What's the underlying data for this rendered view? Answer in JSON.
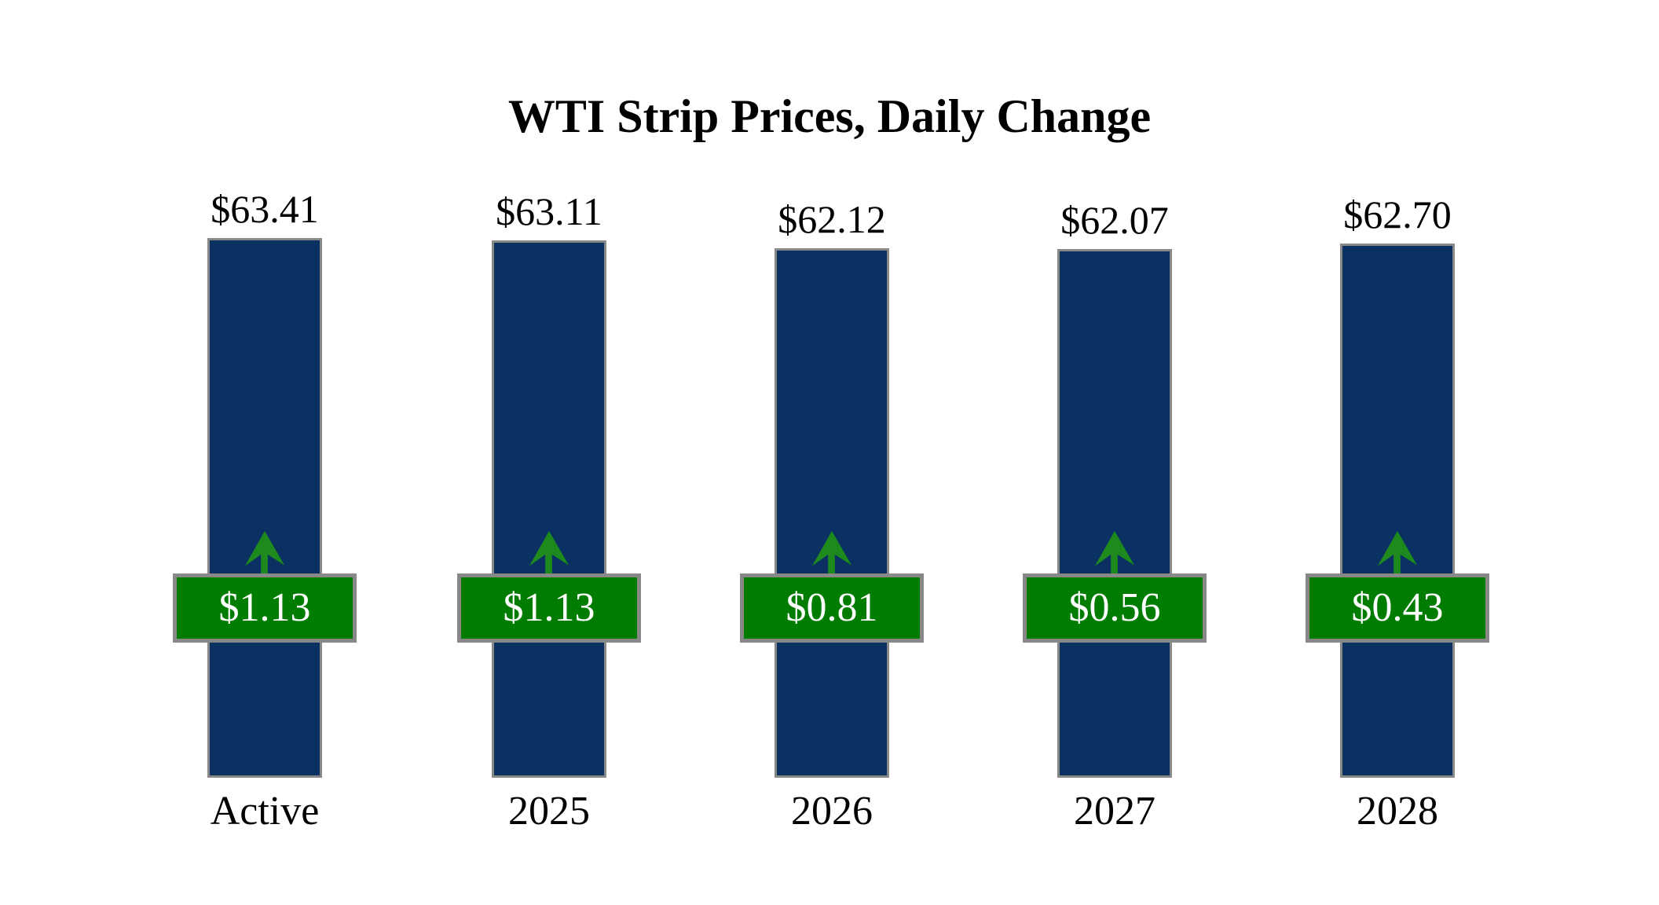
{
  "title": "WTI Strip Prices, Daily Change",
  "chart_data": {
    "type": "bar",
    "title": "WTI Strip Prices, Daily Change",
    "categories": [
      "Active",
      "2025",
      "2026",
      "2027",
      "2028"
    ],
    "series": [
      {
        "name": "strip_price",
        "values": [
          63.41,
          63.11,
          62.12,
          62.07,
          62.7
        ]
      },
      {
        "name": "daily_change",
        "values": [
          1.13,
          1.13,
          0.81,
          0.56,
          0.43
        ]
      }
    ],
    "price_labels": [
      "$63.41",
      "$63.11",
      "$62.12",
      "$62.07",
      "$62.70"
    ],
    "change_labels": [
      "$1.13",
      "$1.13",
      "$0.81",
      "$0.56",
      "$0.43"
    ],
    "change_direction": "up",
    "legend": "none",
    "axes": "hidden",
    "grid": "off",
    "colors": {
      "bar": "#0a3161",
      "bar_border": "#888888",
      "badge": "#007d00",
      "badge_border": "#888888",
      "badge_text": "#ffffff",
      "arrow": "#1e8a1e",
      "text": "#000000",
      "background": "#ffffff"
    }
  }
}
